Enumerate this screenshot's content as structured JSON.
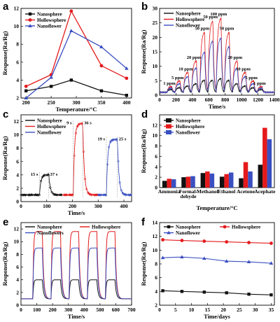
{
  "colors": {
    "nanosphere": "#111111",
    "hollowsphere": "#e41a1c",
    "nanoflower": "#3a4fc1"
  },
  "chart_data": [
    {
      "panel": "a",
      "type": "line",
      "xlabel": "Temperature/°C",
      "ylabel": "Response(Ra/Rg)",
      "xlim": [
        190,
        410
      ],
      "ylim": [
        2,
        12
      ],
      "xticks": [
        200,
        250,
        300,
        350,
        400
      ],
      "yticks": [
        2,
        4,
        6,
        8,
        10,
        12
      ],
      "legend": "top-left",
      "x": [
        200,
        250,
        290,
        350,
        400
      ],
      "series": [
        {
          "name": "Nanosphere",
          "color": "#111111",
          "marker": "square",
          "values": [
            2.8,
            3.3,
            4.0,
            2.8,
            2.3
          ]
        },
        {
          "name": "Hollowsphere",
          "color": "#e41a1c",
          "marker": "circle",
          "values": [
            3.3,
            4.6,
            11.7,
            5.6,
            4.2
          ]
        },
        {
          "name": "Nanoflower",
          "color": "#3a4fc1",
          "marker": "triangle",
          "values": [
            2.0,
            4.3,
            9.5,
            7.7,
            5.3
          ]
        }
      ]
    },
    {
      "panel": "b",
      "type": "line",
      "xlabel": "Time/s",
      "ylabel": "Response(Ra/Rg)",
      "xlim": [
        0,
        1400
      ],
      "ylim": [
        0,
        30
      ],
      "xticks": [
        0,
        200,
        400,
        600,
        800,
        1000,
        1200,
        1400
      ],
      "yticks": [
        0,
        5,
        10,
        15,
        20,
        25,
        30
      ],
      "legend": "top-left",
      "pulses": [
        {
          "start": 90,
          "end": 150,
          "label": "1 ppm"
        },
        {
          "start": 190,
          "end": 250,
          "label": "5 ppm"
        },
        {
          "start": 290,
          "end": 350,
          "label": "10 ppm"
        },
        {
          "start": 390,
          "end": 450,
          "label": "20 ppm"
        },
        {
          "start": 490,
          "end": 550,
          "label": "50 ppm"
        },
        {
          "start": 590,
          "end": 650,
          "label": "50 ppm"
        },
        {
          "start": 690,
          "end": 750,
          "label": "100 ppm"
        },
        {
          "start": 790,
          "end": 850,
          "label": "50 ppm"
        },
        {
          "start": 890,
          "end": 950,
          "label": "20 ppm"
        },
        {
          "start": 990,
          "end": 1050,
          "label": "10 ppm"
        },
        {
          "start": 1090,
          "end": 1150,
          "label": "5 ppm"
        },
        {
          "start": 1190,
          "end": 1250,
          "label": "1 ppm"
        }
      ],
      "series": [
        {
          "name": "Nanosphere",
          "color": "#111111",
          "peaks": [
            2.0,
            2.6,
            3.2,
            4.0,
            5.2,
            5.2,
            5.8,
            5.2,
            4.0,
            3.2,
            2.6,
            2.0
          ]
        },
        {
          "name": "Hollowsphere",
          "color": "#e41a1c",
          "peaks": [
            3.0,
            5.0,
            8.0,
            12.0,
            22.0,
            26.0,
            27.0,
            22.0,
            12.0,
            8.0,
            5.0,
            3.0
          ]
        },
        {
          "name": "Nanoflower",
          "color": "#3a4fc1",
          "peaks": [
            2.5,
            4.0,
            6.5,
            9.5,
            15.0,
            19.0,
            20.0,
            17.0,
            9.5,
            6.5,
            4.0,
            2.5
          ]
        }
      ]
    },
    {
      "panel": "c",
      "type": "line",
      "xlabel": "Time/s",
      "ylabel": "Response(Ra/Rg)",
      "xlim": [
        0,
        430
      ],
      "ylim": [
        0,
        13
      ],
      "xticks": [
        0,
        100,
        200,
        300,
        400
      ],
      "yticks": [
        0,
        2,
        4,
        6,
        8,
        10,
        12
      ],
      "legend": "top-left",
      "series": [
        {
          "name": "Nanosphere",
          "color": "#111111",
          "t_on": 72,
          "t_off": 108,
          "peak": 4.0,
          "x_range": [
            0,
            160
          ],
          "annotations": [
            "15 s",
            "37 s"
          ]
        },
        {
          "name": "Hollowsphere",
          "color": "#e41a1c",
          "t_on": 203,
          "t_off": 240,
          "peak": 11.7,
          "x_range": [
            165,
            300
          ],
          "annotations": [
            "9 s",
            "36 s"
          ]
        },
        {
          "name": "Nanoflower",
          "color": "#3a4fc1",
          "t_on": 332,
          "t_off": 375,
          "peak": 9.3,
          "x_range": [
            300,
            430
          ],
          "annotations": [
            "19 s",
            "25 s"
          ]
        }
      ]
    },
    {
      "panel": "d",
      "type": "bar",
      "xlabel": "Temperature/°C",
      "ylabel": "Response(Ra/Rg)",
      "ylim": [
        0,
        14
      ],
      "yticks": [
        0,
        2,
        4,
        6,
        8,
        10,
        12
      ],
      "legend": "top-left",
      "categories": [
        "Ammonia",
        "Formal-\ndehyde",
        "Methanol",
        "Ethanol",
        "Acetone",
        "Acephate"
      ],
      "series": [
        {
          "name": "Nanosphere",
          "color": "#111111",
          "values": [
            1.3,
            2.0,
            2.8,
            2.1,
            1.8,
            4.4
          ]
        },
        {
          "name": "Hollowsphere",
          "color": "#e41a1c",
          "values": [
            1.7,
            2.1,
            3.1,
            2.6,
            4.9,
            11.5
          ]
        },
        {
          "name": "Nanoflower",
          "color": "#3a4fc1",
          "values": [
            1.6,
            2.2,
            2.7,
            2.9,
            3.1,
            9.3
          ]
        }
      ]
    },
    {
      "panel": "e",
      "type": "line",
      "xlabel": "Time/s",
      "ylabel": "Response(Ra/Rg)",
      "xlim": [
        0,
        700
      ],
      "ylim": [
        0,
        13
      ],
      "xticks": [
        0,
        100,
        200,
        300,
        400,
        500,
        600,
        700
      ],
      "yticks": [
        0,
        2,
        4,
        6,
        8,
        10,
        12
      ],
      "legend": "top",
      "pulse_starts": [
        75,
        190,
        305,
        420,
        535
      ],
      "pulse_width": 60,
      "series": [
        {
          "name": "Nanosphere",
          "color": "#111111",
          "peak": 4.0
        },
        {
          "name": "Hollowsphere",
          "color": "#e41a1c",
          "peak": 11.6
        },
        {
          "name": "Nanoflowers",
          "color": "#3a4fc1",
          "peak": 9.0
        }
      ]
    },
    {
      "panel": "f",
      "type": "line",
      "xlabel": "Time/days",
      "ylabel": "Response(Ra/Rg)",
      "xlim": [
        0,
        36
      ],
      "ylim": [
        2,
        14
      ],
      "xticks": [
        0,
        5,
        10,
        15,
        20,
        25,
        30,
        35
      ],
      "yticks": [
        2,
        4,
        6,
        8,
        10,
        12,
        14
      ],
      "legend": "top",
      "x": [
        1,
        7,
        14,
        21,
        28,
        35
      ],
      "series": [
        {
          "name": "Nanosphere",
          "color": "#111111",
          "marker": "square",
          "values": [
            4.1,
            4.0,
            3.9,
            3.8,
            3.6,
            3.5
          ]
        },
        {
          "name": "Hollowsphere",
          "color": "#e41a1c",
          "marker": "circle",
          "values": [
            11.5,
            11.4,
            11.3,
            11.2,
            11.1,
            11.0
          ]
        },
        {
          "name": "Nanoflower",
          "color": "#3a4fc1",
          "marker": "triangle",
          "values": [
            8.9,
            9.0,
            8.8,
            8.4,
            8.3,
            8.1
          ]
        }
      ]
    }
  ]
}
